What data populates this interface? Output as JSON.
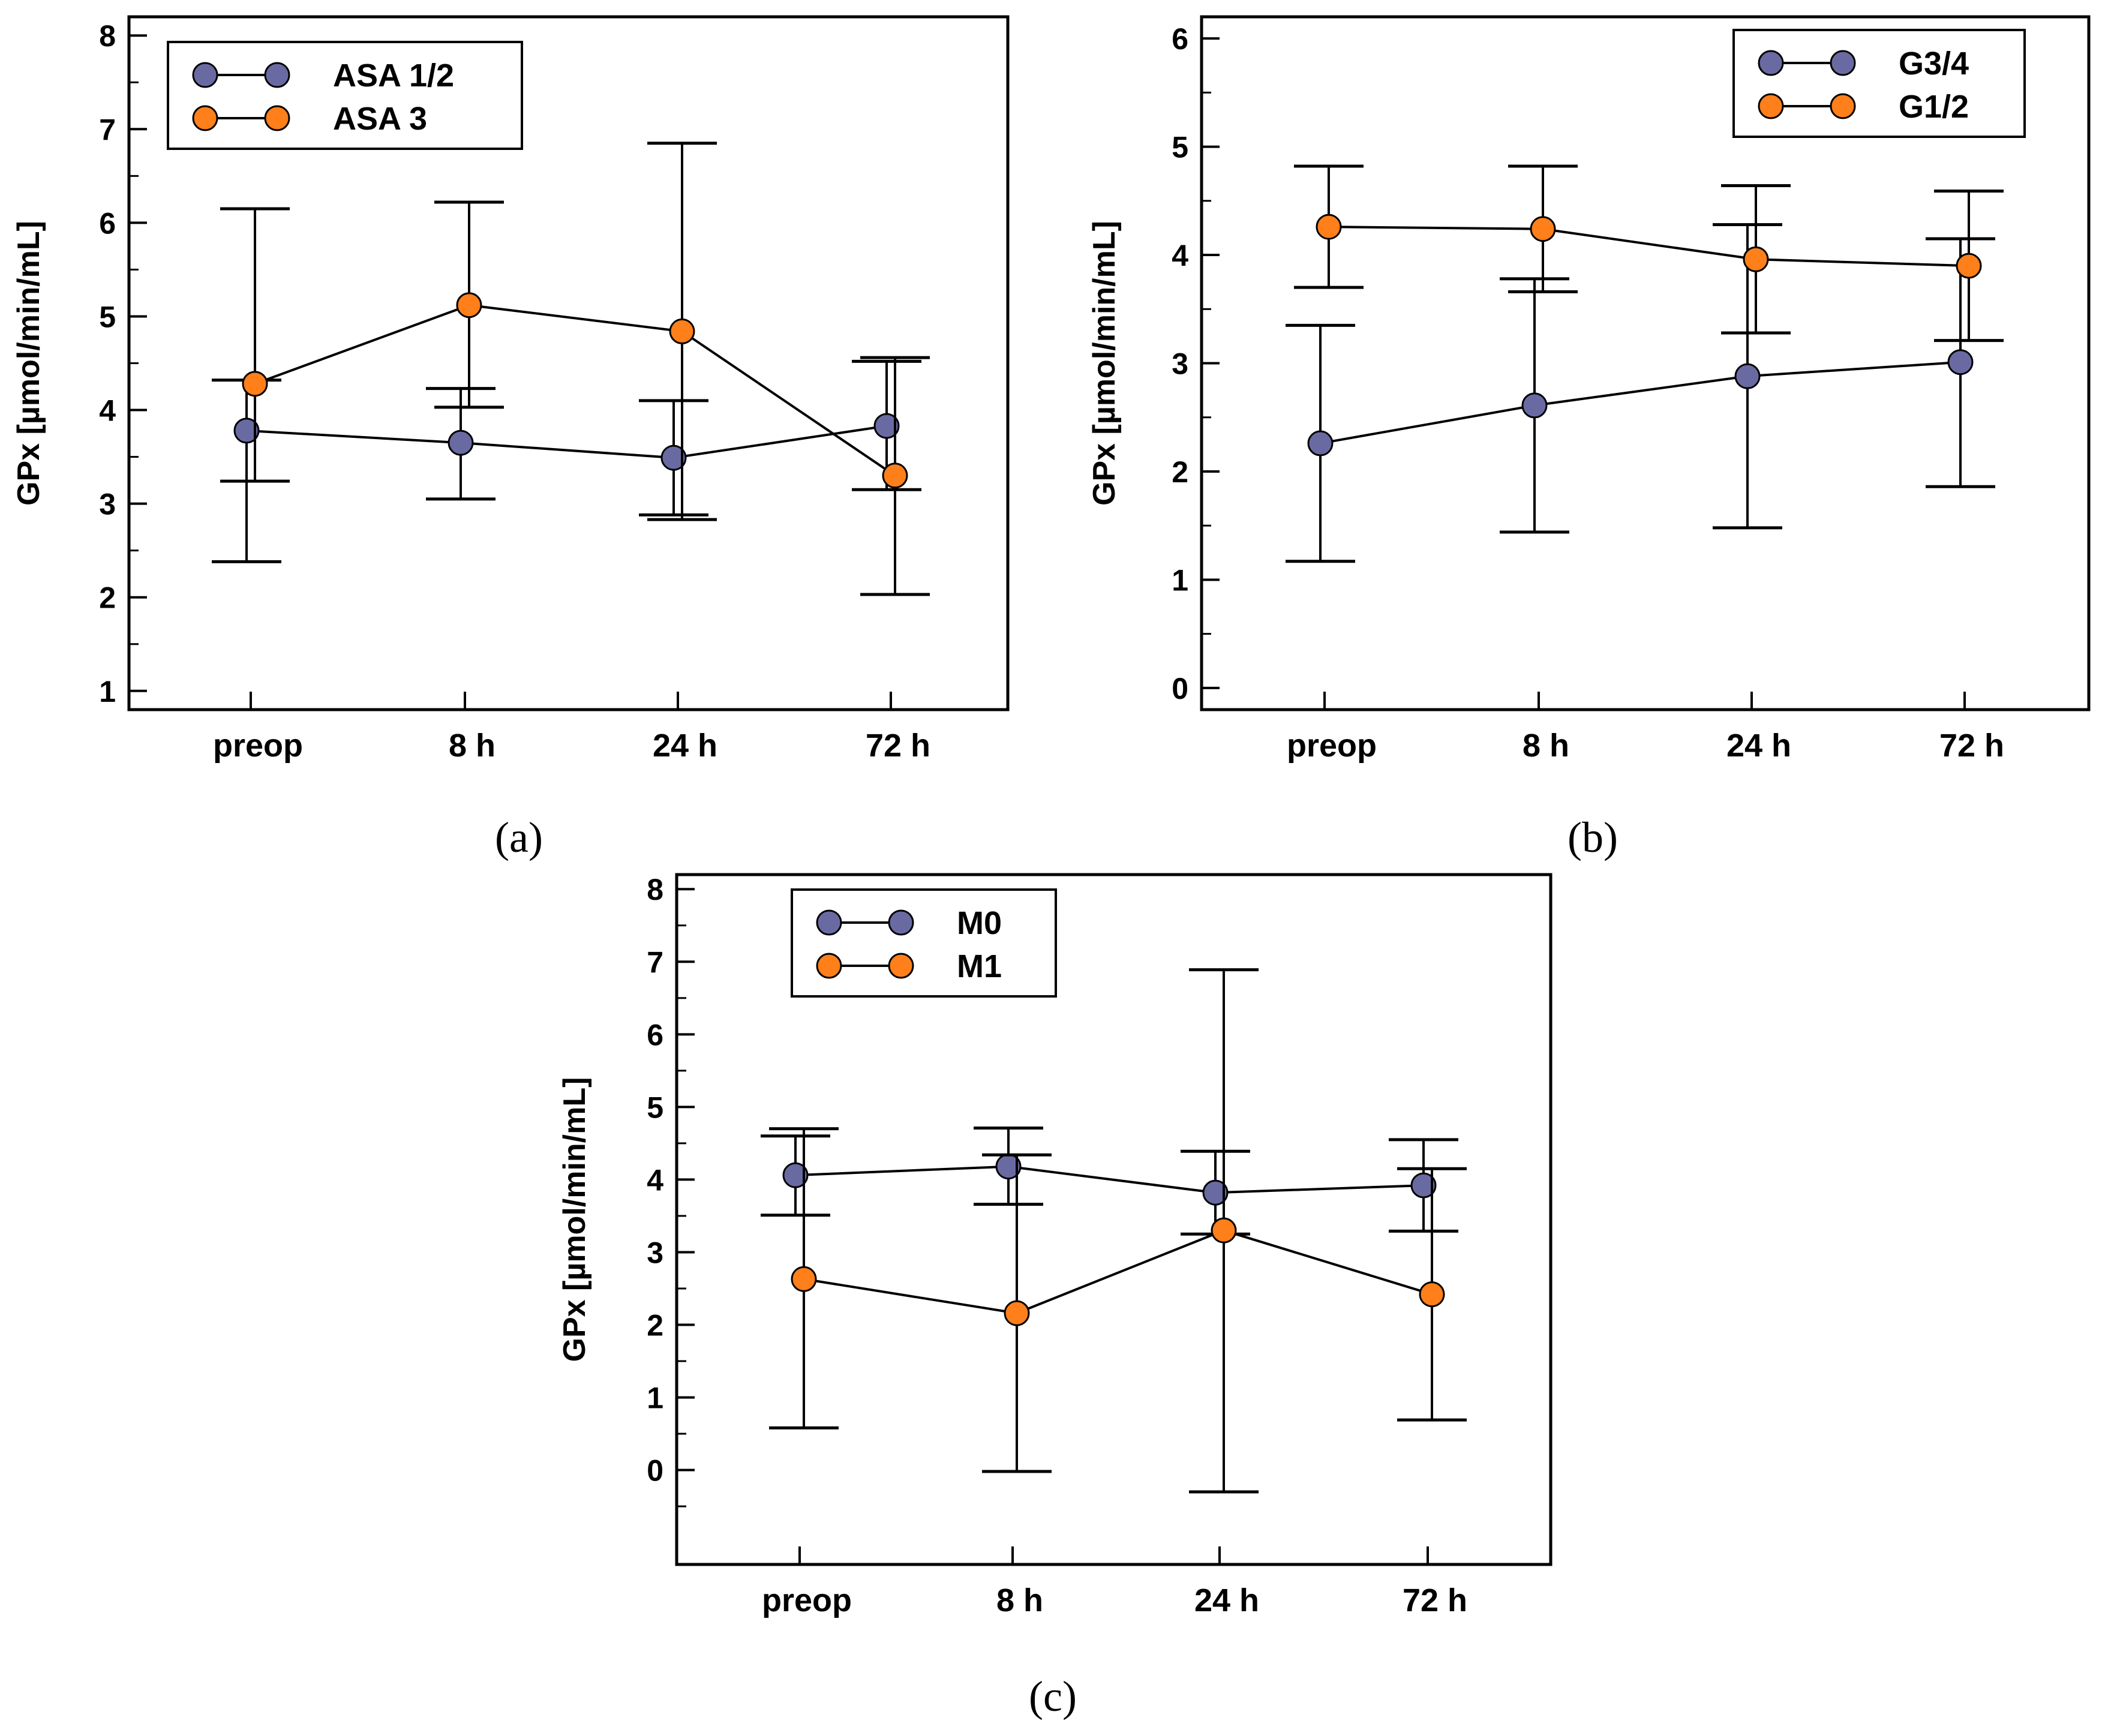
{
  "colors": {
    "series_a": "#6a6aa3",
    "series_b": "#ff7f1a",
    "axis": "#000000"
  },
  "chart_data": [
    {
      "id": "a",
      "type": "line",
      "caption": "(a)",
      "ylabel": "GPx [µmol/min/mL]",
      "categories": [
        "preop",
        "8 h",
        "24 h",
        "72 h"
      ],
      "ylim": [
        0.8,
        8.2
      ],
      "yticks": [
        1,
        2,
        3,
        4,
        5,
        6,
        7,
        8
      ],
      "legend_position": "top-left",
      "series": [
        {
          "name": "ASA 1/2",
          "color_key": "series_a",
          "values": [
            3.78,
            3.65,
            3.49,
            3.83
          ],
          "err_low": [
            2.38,
            3.05,
            2.88,
            3.15
          ],
          "err_high": [
            4.32,
            4.23,
            4.1,
            4.52
          ]
        },
        {
          "name": "ASA 3",
          "color_key": "series_b",
          "values": [
            4.28,
            5.12,
            4.84,
            3.3
          ],
          "err_low": [
            3.24,
            4.03,
            2.83,
            2.03
          ],
          "err_high": [
            6.15,
            6.22,
            6.85,
            4.56
          ]
        }
      ]
    },
    {
      "id": "b",
      "type": "line",
      "caption": "(b)",
      "ylabel": "GPx [µmol/min/mL]",
      "categories": [
        "preop",
        "8 h",
        "24 h",
        "72 h"
      ],
      "ylim": [
        -0.2,
        6.2
      ],
      "yticks": [
        0,
        1,
        2,
        3,
        4,
        5,
        6
      ],
      "legend_position": "top-right",
      "series": [
        {
          "name": "G3/4",
          "color_key": "series_a",
          "values": [
            2.26,
            2.61,
            2.88,
            3.01
          ],
          "err_low": [
            1.17,
            1.44,
            1.48,
            1.86
          ],
          "err_high": [
            3.35,
            3.78,
            4.28,
            4.15
          ]
        },
        {
          "name": "G1/2",
          "color_key": "series_b",
          "values": [
            4.26,
            4.24,
            3.96,
            3.9
          ],
          "err_low": [
            3.7,
            3.66,
            3.28,
            3.21
          ],
          "err_high": [
            4.82,
            4.82,
            4.64,
            4.59
          ]
        }
      ]
    },
    {
      "id": "c",
      "type": "line",
      "caption": "(c)",
      "ylabel": "GPx [µmol/min/mL]",
      "categories": [
        "preop",
        "8 h",
        "24 h",
        "72 h"
      ],
      "ylim": [
        -1.3,
        8.2
      ],
      "yticks": [
        0,
        1,
        2,
        3,
        4,
        5,
        6,
        7,
        8
      ],
      "legend_position": "top-left",
      "series": [
        {
          "name": "M0",
          "color_key": "series_a",
          "values": [
            4.06,
            4.18,
            3.82,
            3.92
          ],
          "err_low": [
            3.51,
            3.66,
            3.25,
            3.29
          ],
          "err_high": [
            4.6,
            4.71,
            4.39,
            4.55
          ]
        },
        {
          "name": "M1",
          "color_key": "series_b",
          "values": [
            2.63,
            2.16,
            3.3,
            2.42
          ],
          "err_low": [
            0.58,
            -0.02,
            -0.3,
            0.69
          ],
          "err_high": [
            4.7,
            4.34,
            6.89,
            4.15
          ]
        }
      ]
    }
  ]
}
